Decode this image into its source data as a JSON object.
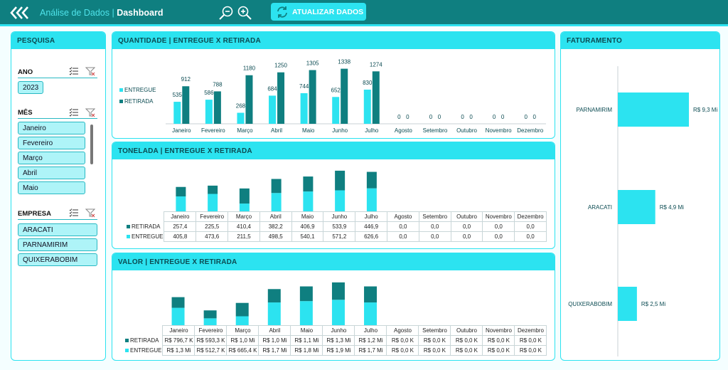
{
  "header": {
    "app_title": "Análise de Dados",
    "separator": "|",
    "page": "Dashboard",
    "refresh_label": "ATUALIZAR DADOS"
  },
  "colors": {
    "entregue": "#2ce3f0",
    "retirada": "#0f7f80",
    "accent": "#2ce3f0",
    "bar_faturamento": "#2ce3f0"
  },
  "filters": {
    "title": "PESQUISA",
    "ano_label": "ANO",
    "anos": [
      "2023"
    ],
    "mes_label": "MÊS",
    "meses": [
      "Janeiro",
      "Fevereiro",
      "Março",
      "Abril",
      "Maio"
    ],
    "empresa_label": "EMPRESA",
    "empresas": [
      "ARACATI",
      "PARNAMIRIM",
      "QUIXERABOBIM"
    ]
  },
  "months": [
    "Janeiro",
    "Fevereiro",
    "Março",
    "Abril",
    "Maio",
    "Junho",
    "Julho",
    "Agosto",
    "Setembro",
    "Outubro",
    "Novembro",
    "Dezembro"
  ],
  "quantidade": {
    "title": "QUANTIDADE | ENTREGUE X RETIRADA",
    "legend": [
      "ENTREGUE",
      "RETIRADA"
    ]
  },
  "tonelada": {
    "title": "TONELADA | ENTREGUE X RETIRADA",
    "row_labels": [
      "RETIRADA",
      "ENTREGUE"
    ],
    "retirada_text": [
      "257,4",
      "225,5",
      "410,4",
      "382,2",
      "406,9",
      "533,9",
      "446,9",
      "0,0",
      "0,0",
      "0,0",
      "0,0",
      "0,0"
    ],
    "entregue_text": [
      "405,8",
      "473,6",
      "211,5",
      "498,5",
      "540,1",
      "571,2",
      "626,6",
      "0,0",
      "0,0",
      "0,0",
      "0,0",
      "0,0"
    ]
  },
  "valor": {
    "title": "VALOR | ENTREGUE X RETIRADA",
    "row_labels": [
      "RETIRADA",
      "ENTREGUE"
    ],
    "retirada_text": [
      "R$ 796,7 K",
      "R$ 593,3 K",
      "R$ 1,0 Mi",
      "R$ 1,0 Mi",
      "R$ 1,1 Mi",
      "R$ 1,3 Mi",
      "R$ 1,2 Mi",
      "R$ 0,0 K",
      "R$ 0,0 K",
      "R$ 0,0 K",
      "R$ 0,0 K",
      "R$ 0,0 K"
    ],
    "entregue_text": [
      "R$ 1,3 Mi",
      "R$ 512,7 K",
      "R$ 665,4 K",
      "R$ 1,7 Mi",
      "R$ 1,8 Mi",
      "R$ 1,9 Mi",
      "R$ 1,7 Mi",
      "R$ 0,0 K",
      "R$ 0,0 K",
      "R$ 0,0 K",
      "R$ 0,0 K",
      "R$ 0,0 K"
    ]
  },
  "faturamento": {
    "title": "FATURAMENTO",
    "labels": [
      "PARNAMIRIM",
      "ARACATI",
      "QUIXERABOBIM"
    ],
    "value_text": [
      "R$ 9,3 Mi",
      "R$ 4,9 Mi",
      "R$ 2,5 Mi"
    ]
  },
  "chart_data": [
    {
      "type": "bar",
      "title": "QUANTIDADE | ENTREGUE X RETIRADA",
      "categories": [
        "Janeiro",
        "Fevereiro",
        "Março",
        "Abril",
        "Maio",
        "Junho",
        "Julho",
        "Agosto",
        "Setembro",
        "Outubro",
        "Novembro",
        "Dezembro"
      ],
      "series": [
        {
          "name": "ENTREGUE",
          "values": [
            535,
            586,
            268,
            684,
            744,
            652,
            830,
            0,
            0,
            0,
            0,
            0
          ]
        },
        {
          "name": "RETIRADA",
          "values": [
            912,
            788,
            1180,
            1250,
            1305,
            1338,
            1274,
            0,
            0,
            0,
            0,
            0
          ]
        }
      ],
      "ylim": [
        0,
        1400
      ],
      "legend": "left"
    },
    {
      "type": "bar",
      "title": "TONELADA | ENTREGUE X RETIRADA",
      "stacked": true,
      "categories": [
        "Janeiro",
        "Fevereiro",
        "Março",
        "Abril",
        "Maio",
        "Junho",
        "Julho",
        "Agosto",
        "Setembro",
        "Outubro",
        "Novembro",
        "Dezembro"
      ],
      "series": [
        {
          "name": "RETIRADA",
          "values": [
            257.4,
            225.5,
            410.4,
            382.2,
            406.9,
            533.9,
            446.9,
            0,
            0,
            0,
            0,
            0
          ]
        },
        {
          "name": "ENTREGUE",
          "values": [
            405.8,
            473.6,
            211.5,
            498.5,
            540.1,
            571.2,
            626.6,
            0,
            0,
            0,
            0,
            0
          ]
        }
      ],
      "ylim": [
        0,
        1200
      ]
    },
    {
      "type": "bar",
      "title": "VALOR | ENTREGUE X RETIRADA",
      "stacked": true,
      "categories": [
        "Janeiro",
        "Fevereiro",
        "Março",
        "Abril",
        "Maio",
        "Junho",
        "Julho",
        "Agosto",
        "Setembro",
        "Outubro",
        "Novembro",
        "Dezembro"
      ],
      "series": [
        {
          "name": "RETIRADA",
          "values": [
            0.7967,
            0.5933,
            1.0,
            1.0,
            1.1,
            1.3,
            1.2,
            0,
            0,
            0,
            0,
            0
          ]
        },
        {
          "name": "ENTREGUE",
          "values": [
            1.3,
            0.5127,
            0.6654,
            1.7,
            1.8,
            1.9,
            1.7,
            0,
            0,
            0,
            0,
            0
          ]
        }
      ],
      "ylim": [
        0,
        3.3
      ]
    },
    {
      "type": "bar",
      "title": "FATURAMENTO",
      "orientation": "horizontal",
      "categories": [
        "PARNAMIRIM",
        "ARACATI",
        "QUIXERABOBIM"
      ],
      "values": [
        9.3,
        4.9,
        2.5
      ],
      "xlim": [
        0,
        10
      ]
    }
  ]
}
